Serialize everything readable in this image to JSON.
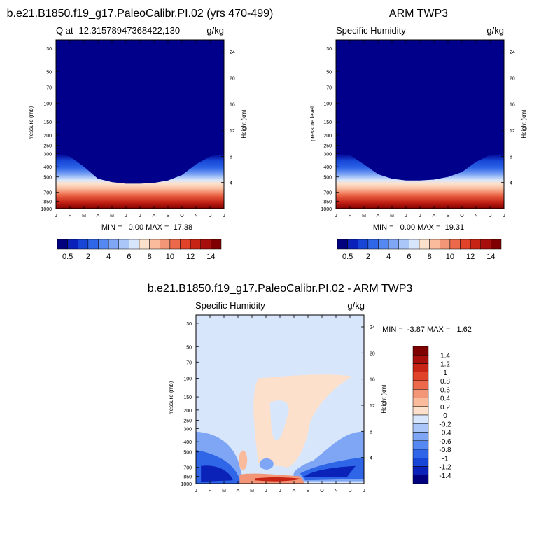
{
  "chart_data": [
    {
      "type": "heatmap",
      "title": "b.e21.B1850.f19_g17.PaleoCalibr.PI.02 (yrs 470-499)",
      "subtitle_left": "Q at -12.31578947368422,130",
      "units": "g/kg",
      "ylabel": "Pressure (mb)",
      "ylabel_right": "Height (km)",
      "pressure_ticks": [
        "30",
        "50",
        "70",
        "100",
        "150",
        "200",
        "250",
        "300",
        "400",
        "500",
        "700",
        "850",
        "1000"
      ],
      "height_ticks": [
        "24",
        "20",
        "16",
        "12",
        "8",
        "4"
      ],
      "month_ticks": [
        "J",
        "F",
        "M",
        "A",
        "M",
        "J",
        "J",
        "A",
        "S",
        "O",
        "N",
        "D",
        "J"
      ],
      "stats": "MIN =   0.00 MAX =  17.38",
      "field": "moist",
      "moist_top_mb": [
        300,
        320,
        400,
        520,
        560,
        580,
        580,
        570,
        540,
        480,
        380,
        320,
        300
      ]
    },
    {
      "type": "heatmap",
      "title": "ARM TWP3",
      "subtitle_left": "Specific Humidity",
      "units": "g/kg",
      "ylabel": "pressure level",
      "ylabel_right": "Height (km)",
      "pressure_ticks": [
        "30",
        "50",
        "70",
        "100",
        "150",
        "200",
        "250",
        "300",
        "400",
        "500",
        "700",
        "850",
        "1000"
      ],
      "height_ticks": [
        "24",
        "20",
        "16",
        "12",
        "8",
        "4"
      ],
      "month_ticks": [
        "J",
        "F",
        "M",
        "A",
        "M",
        "J",
        "J",
        "A",
        "S",
        "O",
        "N",
        "D",
        "J"
      ],
      "stats": "MIN =   0.00 MAX =  19.31",
      "field": "moist",
      "moist_top_mb": [
        300,
        310,
        380,
        470,
        520,
        540,
        540,
        530,
        500,
        450,
        360,
        310,
        300
      ]
    },
    {
      "type": "heatmap",
      "title": "b.e21.B1850.f19_g17.PaleoCalibr.PI.02 - ARM TWP3",
      "subtitle_left": "Specific Humidity",
      "units": "g/kg",
      "ylabel": "Pressure (mb)",
      "ylabel_right": "Height (km)",
      "pressure_ticks": [
        "30",
        "50",
        "70",
        "100",
        "150",
        "200",
        "250",
        "300",
        "400",
        "500",
        "700",
        "850",
        "1000"
      ],
      "height_ticks": [
        "24",
        "20",
        "16",
        "12",
        "8",
        "4"
      ],
      "month_ticks": [
        "J",
        "F",
        "M",
        "A",
        "M",
        "J",
        "J",
        "A",
        "S",
        "O",
        "N",
        "D",
        "J"
      ],
      "stats": "MIN =  -3.87 MAX =   1.62",
      "field": "diff"
    }
  ],
  "colorbar_top": {
    "labels": [
      "0.5",
      "2",
      "4",
      "6",
      "8",
      "10",
      "12",
      "14"
    ],
    "colors": [
      "#00007f",
      "#0a22b8",
      "#1746d6",
      "#2f66e8",
      "#5588f0",
      "#7fa6f4",
      "#aac6f8",
      "#d8e6fb",
      "#fde0cb",
      "#f9bb9c",
      "#f39577",
      "#ec6a4b",
      "#e0432a",
      "#c72416",
      "#a60f0b",
      "#7f0000"
    ]
  },
  "colorbar_diff": {
    "labels": [
      "1.4",
      "1.2",
      "1",
      "0.8",
      "0.6",
      "0.4",
      "0.2",
      "0",
      "-0.2",
      "-0.4",
      "-0.6",
      "-0.8",
      "-1",
      "-1.2",
      "-1.4"
    ],
    "colors": [
      "#7f0000",
      "#a60f0b",
      "#c72416",
      "#e0432a",
      "#ec6a4b",
      "#f39577",
      "#f9bb9c",
      "#fde0cb",
      "#d8e6fb",
      "#aac6f8",
      "#7fa6f4",
      "#5588f0",
      "#2f66e8",
      "#1746d6",
      "#0a22b8",
      "#00007f"
    ]
  }
}
